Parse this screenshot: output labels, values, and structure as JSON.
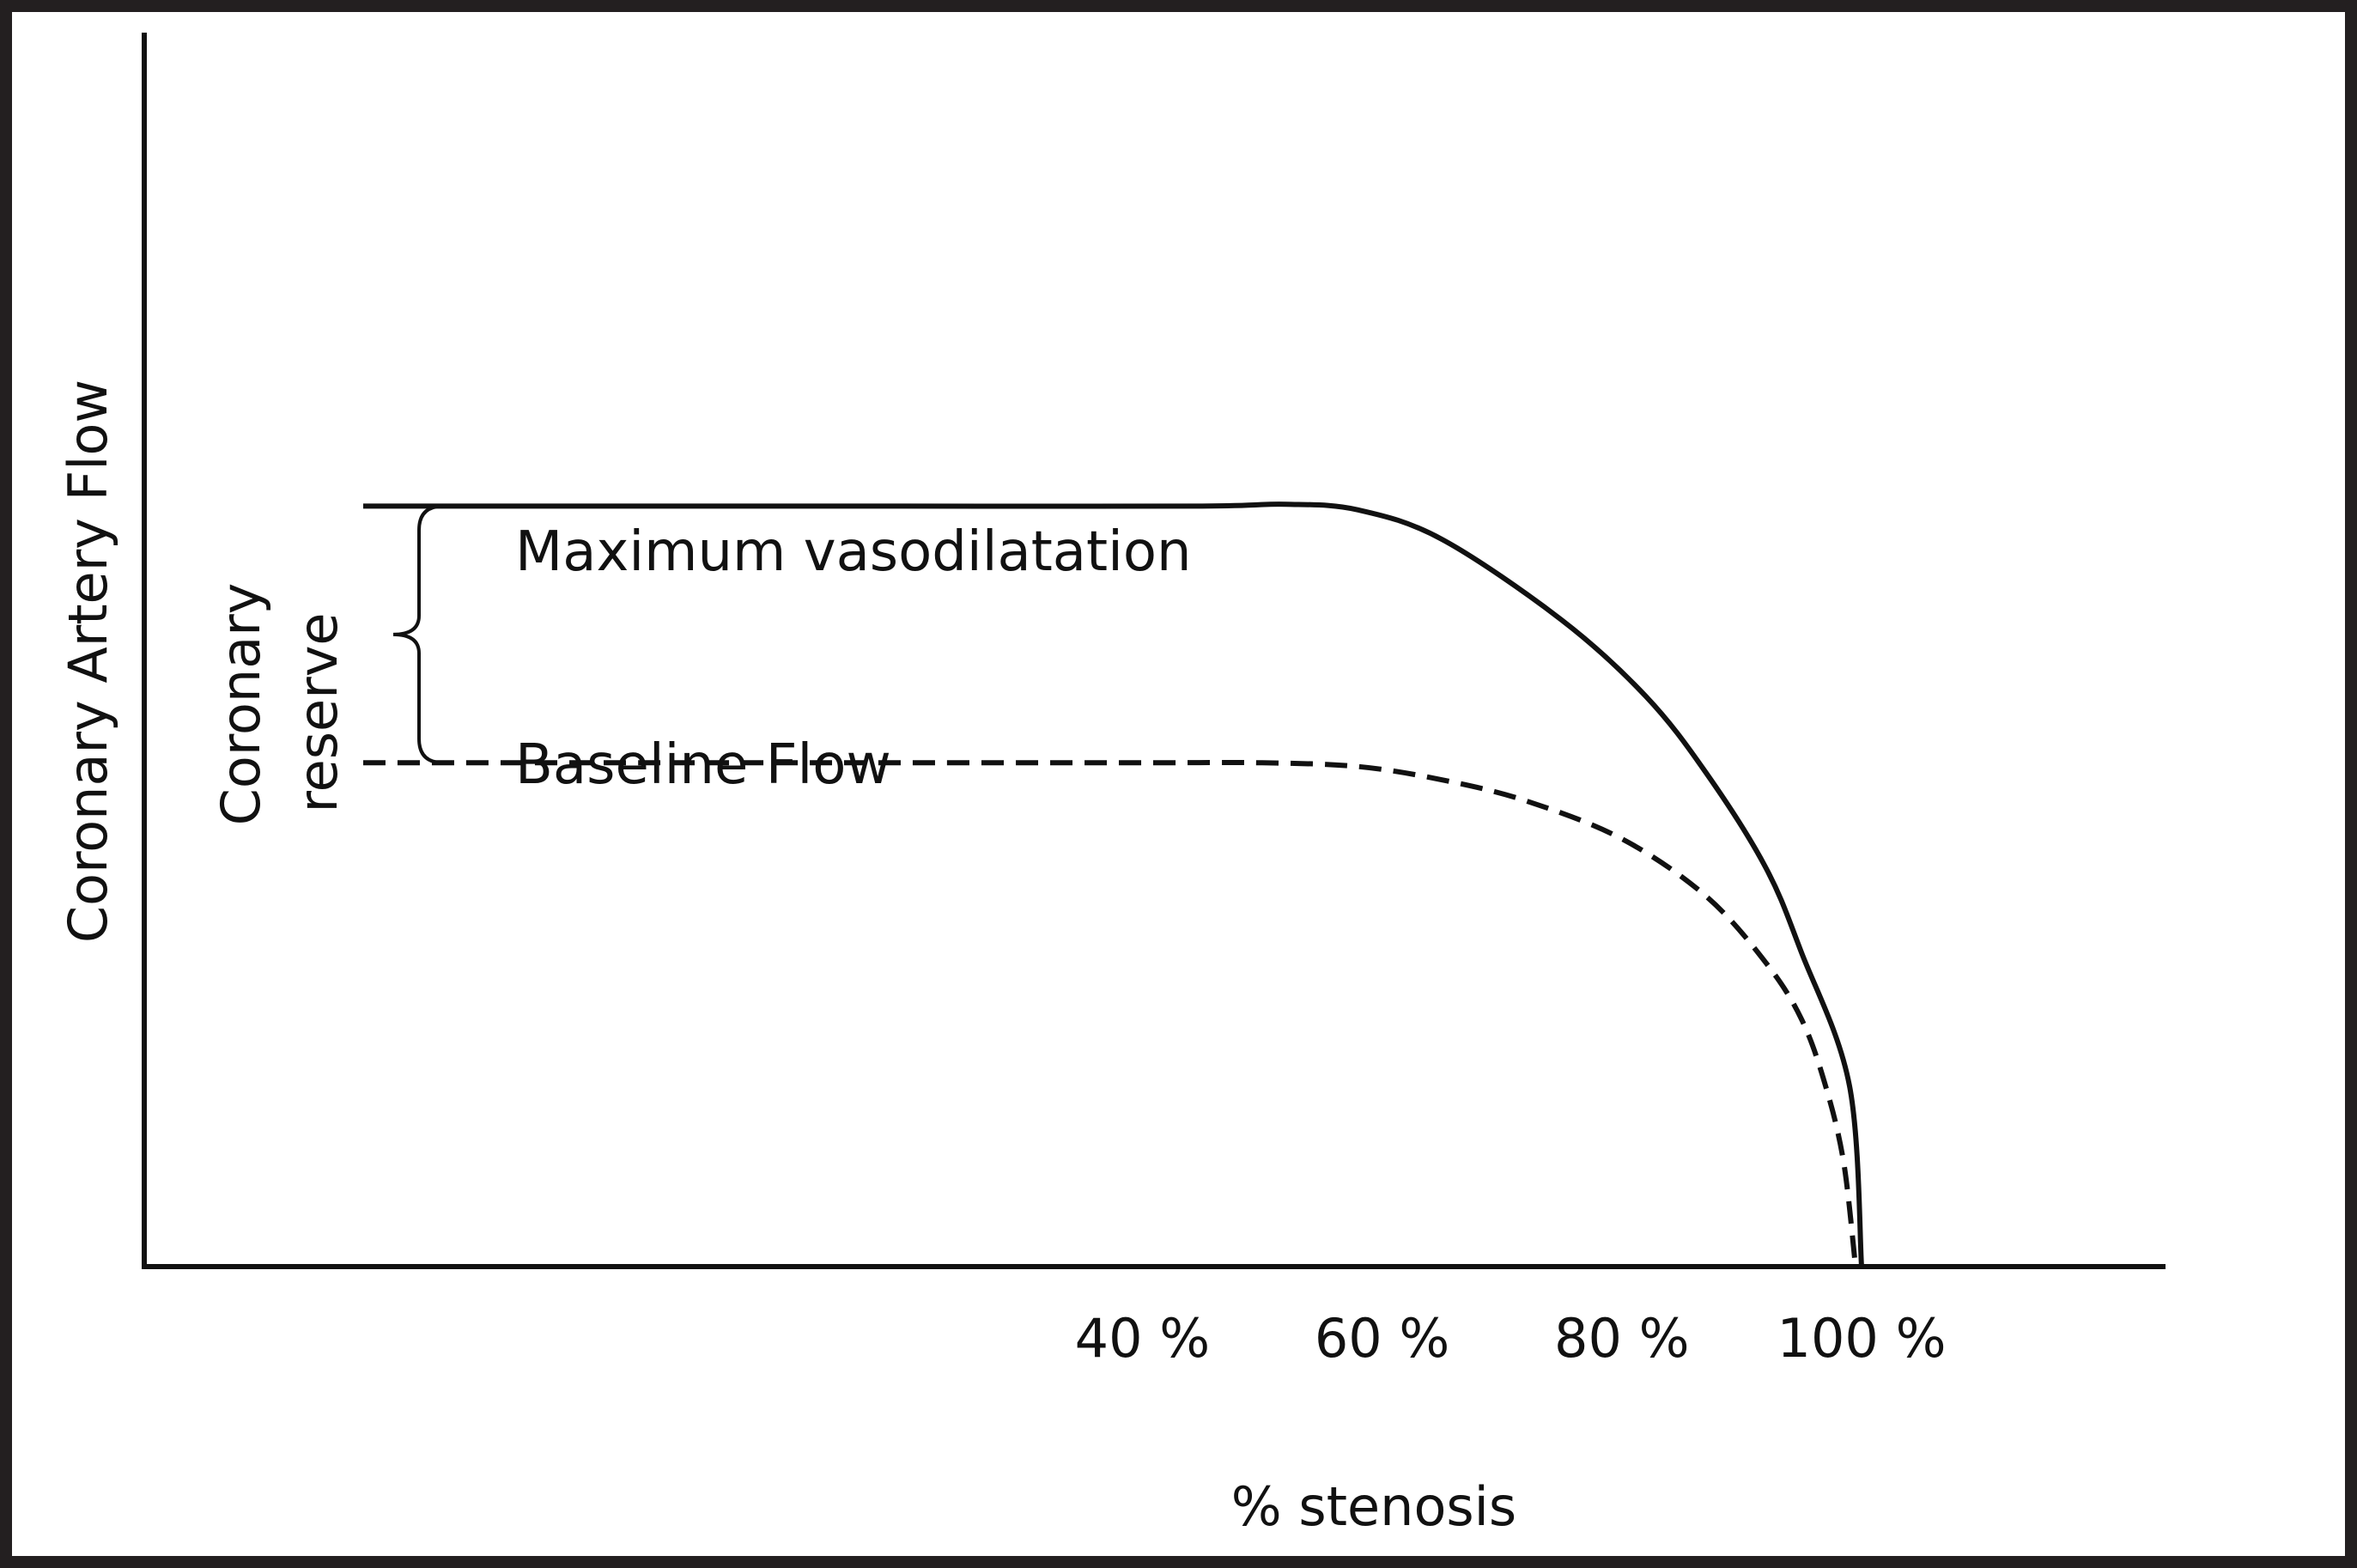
{
  "chart_data": {
    "type": "line",
    "title": "",
    "xlabel": "% stenosis",
    "ylabel": "Coronary Artery Flow",
    "xlim": [
      0,
      100
    ],
    "ylim": [
      0,
      1
    ],
    "grid": false,
    "legend": "none",
    "x_ticks": [
      {
        "value": 40,
        "label": "40 %"
      },
      {
        "value": 60,
        "label": "60 %"
      },
      {
        "value": 80,
        "label": "80 %"
      },
      {
        "value": 100,
        "label": "100 %"
      }
    ],
    "series": [
      {
        "name": "Maximum vasodilatation",
        "style": "solid",
        "color": "#111111",
        "x": [
          -25,
          0,
          20,
          45,
          52,
          58,
          65,
          75,
          82,
          87,
          92,
          95,
          99,
          100
        ],
        "y": [
          0.8,
          0.8,
          0.8,
          0.8,
          0.802,
          0.796,
          0.765,
          0.68,
          0.6,
          0.52,
          0.42,
          0.33,
          0.19,
          0.0
        ]
      },
      {
        "name": "Baseline Flow",
        "style": "dashed",
        "color": "#111111",
        "x": [
          -25,
          0,
          20,
          40,
          50,
          58,
          65,
          72,
          80,
          87,
          92,
          95,
          97,
          98.5,
          99.5
        ],
        "y": [
          0.53,
          0.53,
          0.53,
          0.53,
          0.53,
          0.526,
          0.512,
          0.49,
          0.45,
          0.39,
          0.32,
          0.26,
          0.19,
          0.11,
          0.0
        ]
      }
    ],
    "annotations": [
      {
        "text": "Coronary reserve",
        "lines": [
          "Coronary",
          "reserve"
        ],
        "type": "brace",
        "from": 0.53,
        "to": 0.8
      }
    ]
  }
}
